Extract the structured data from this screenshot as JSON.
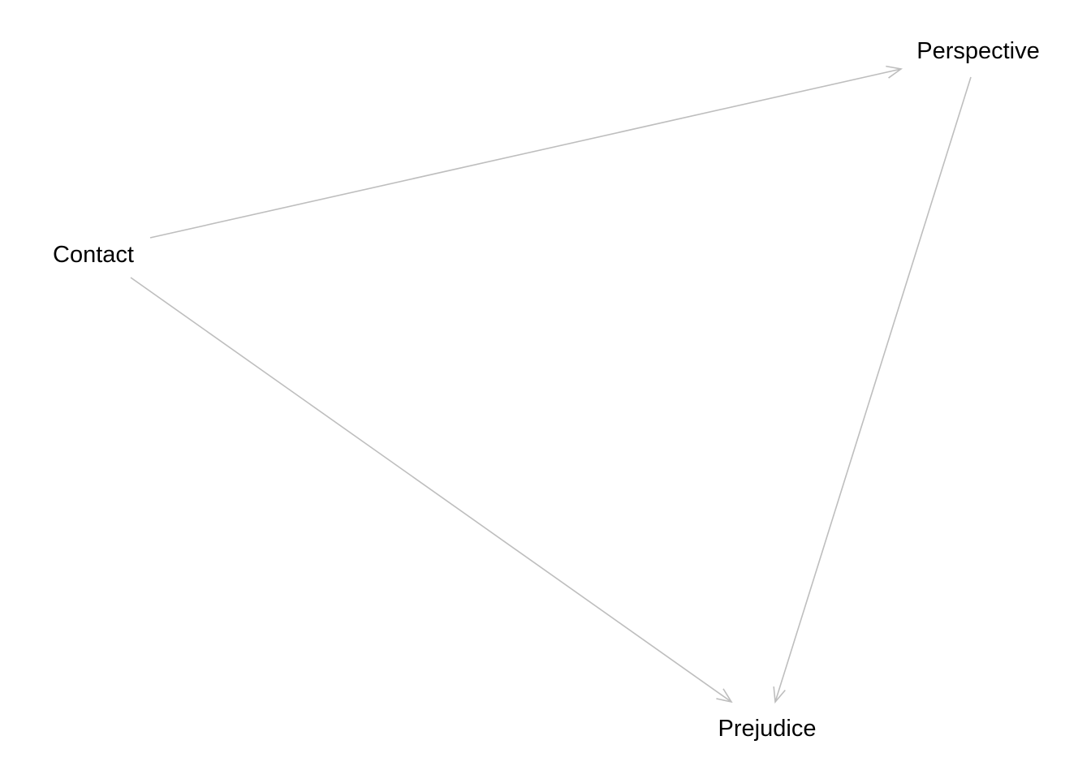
{
  "diagram": {
    "edge_color": "#bebebe",
    "text_color": "#000000",
    "nodes": [
      {
        "id": "contact",
        "label": "Contact"
      },
      {
        "id": "perspective",
        "label": "Perspective"
      },
      {
        "id": "prejudice",
        "label": "Prejudice"
      }
    ],
    "edges": [
      {
        "from": "contact",
        "to": "perspective",
        "arrow": "end"
      },
      {
        "from": "contact",
        "to": "prejudice",
        "arrow": "end"
      },
      {
        "from": "perspective",
        "to": "prejudice",
        "arrow": "end"
      }
    ]
  }
}
